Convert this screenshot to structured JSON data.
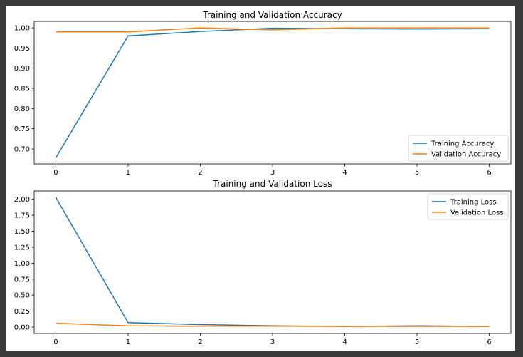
{
  "chart_data": [
    {
      "type": "line",
      "title": "Training and Validation Accuracy",
      "xlabel": "",
      "ylabel": "",
      "x": [
        0,
        1,
        2,
        3,
        4,
        5,
        6
      ],
      "xticks": [
        "0",
        "1",
        "2",
        "3",
        "4",
        "5",
        "6"
      ],
      "ylim": [
        0.663,
        1.016
      ],
      "yticks": [
        "0.70",
        "0.75",
        "0.80",
        "0.85",
        "0.90",
        "0.95",
        "1.00"
      ],
      "legend_position": "lower right",
      "series": [
        {
          "name": "Training Accuracy",
          "color": "#1f77b4",
          "values": [
            0.678,
            0.98,
            0.991,
            0.999,
            0.998,
            0.997,
            0.998
          ]
        },
        {
          "name": "Validation Accuracy",
          "color": "#ff7f0e",
          "values": [
            0.99,
            0.99,
            1.0,
            0.995,
            1.0,
            1.0,
            1.0
          ]
        }
      ]
    },
    {
      "type": "line",
      "title": "Training and Validation Loss",
      "xlabel": "",
      "ylabel": "",
      "x": [
        0,
        1,
        2,
        3,
        4,
        5,
        6
      ],
      "xticks": [
        "0",
        "1",
        "2",
        "3",
        "4",
        "5",
        "6"
      ],
      "ylim": [
        -0.1,
        2.13
      ],
      "yticks": [
        "0.00",
        "0.25",
        "0.50",
        "0.75",
        "1.00",
        "1.25",
        "1.50",
        "1.75",
        "2.00"
      ],
      "legend_position": "upper right",
      "series": [
        {
          "name": "Training Loss",
          "color": "#1f77b4",
          "values": [
            2.03,
            0.07,
            0.04,
            0.02,
            0.01,
            0.02,
            0.01
          ]
        },
        {
          "name": "Validation Loss",
          "color": "#ff7f0e",
          "values": [
            0.06,
            0.02,
            0.015,
            0.015,
            0.01,
            0.01,
            0.01
          ]
        }
      ]
    }
  ]
}
